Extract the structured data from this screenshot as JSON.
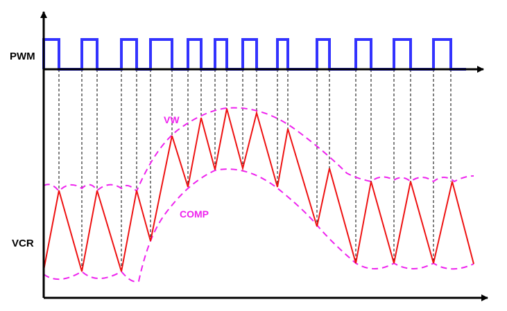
{
  "labels": {
    "pwm": "PWM",
    "vcr": "VCR",
    "vw": "VW",
    "comp": "COMP"
  },
  "colors": {
    "pwm": "#3333ff",
    "vcr": "#ee1111",
    "envelope": "#ee22ee",
    "axes": "#000000",
    "guides": "#000000"
  }
}
